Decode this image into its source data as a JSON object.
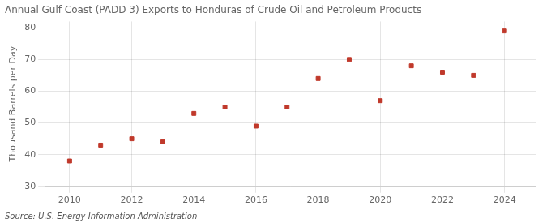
{
  "chart_data": {
    "type": "scatter",
    "title": "Annual Gulf Coast (PADD 3) Exports to Honduras of Crude Oil and Petroleum Products",
    "y_label": "Thousand Barrels per Day",
    "annotations": [
      "Source: U.S. Energy Information Administration"
    ],
    "x": [
      2010,
      2011,
      2012,
      2013,
      2014,
      2015,
      2016,
      2017,
      2018,
      2019,
      2020,
      2021,
      2022,
      2023,
      2024
    ],
    "values": [
      38,
      43,
      45,
      44,
      53,
      55,
      49,
      55,
      64,
      70,
      57,
      68,
      66,
      65,
      79
    ],
    "color": "#c0392b",
    "marker": "square",
    "xlim": [
      2009.2,
      2025.0
    ],
    "xticks": [
      2010,
      2012,
      2014,
      2016,
      2018,
      2020,
      2022,
      2024
    ],
    "ylim": [
      30,
      82
    ],
    "yticks": [
      30,
      40,
      50,
      60,
      70,
      80
    ],
    "grid": true
  }
}
